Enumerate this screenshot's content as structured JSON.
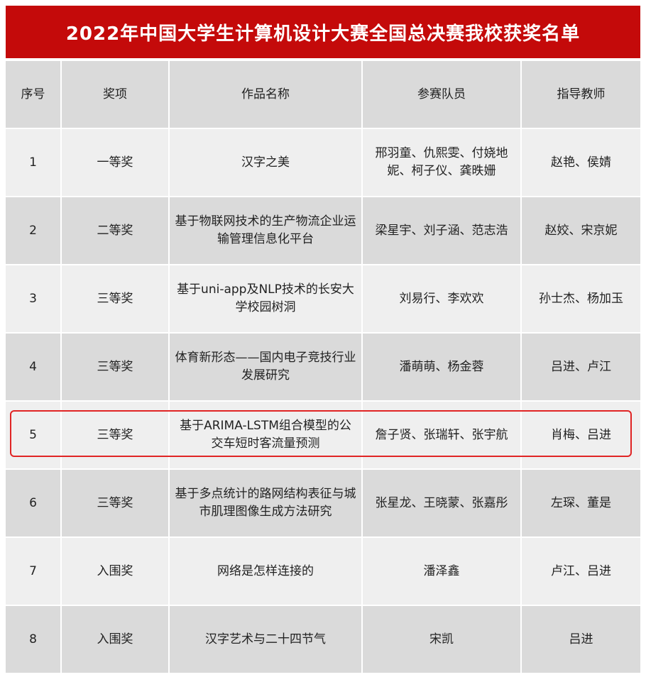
{
  "title": "2022年中国大学生计算机设计大赛全国总决赛我校获奖名单",
  "headers": [
    "序号",
    "奖项",
    "作品名称",
    "参赛队员",
    "指导教师"
  ],
  "rows": [
    [
      "1",
      "一等奖",
      "汉字之美",
      "邢羽童、仇熙雯、付娆地妮、柯子仪、龚昳姗",
      "赵艳、侯婧"
    ],
    [
      "2",
      "二等奖",
      "基于物联网技术的生产物流企业运输管理信息化平台",
      "梁星宇、刘子涵、范志浩",
      "赵姣、宋京妮"
    ],
    [
      "3",
      "三等奖",
      "基于uni-app及NLP技术的长安大学校园树洞",
      "刘易行、李欢欢",
      "孙士杰、杨加玉"
    ],
    [
      "4",
      "三等奖",
      "体育新形态——国内电子竞技行业发展研究",
      "潘萌萌、杨金蓉",
      "吕进、卢江"
    ],
    [
      "5",
      "三等奖",
      "基于ARIMA-LSTM组合模型的公交车短时客流量预测",
      "詹子贤、张瑞轩、张宇航",
      "肖梅、吕进"
    ],
    [
      "6",
      "三等奖",
      "基于多点统计的路网结构表征与城市肌理图像生成方法研究",
      "张星龙、王晓蒙、张嘉彤",
      "左琛、董是"
    ],
    [
      "7",
      "入围奖",
      "网络是怎样连接的",
      "潘泽鑫",
      "卢江、吕进"
    ],
    [
      "8",
      "入围奖",
      "汉字艺术与二十四节气",
      "宋凯",
      "吕进"
    ]
  ],
  "highlighted_row": "5",
  "colors": {
    "title_bg": "#c40a0a",
    "highlight": "#e02424"
  }
}
